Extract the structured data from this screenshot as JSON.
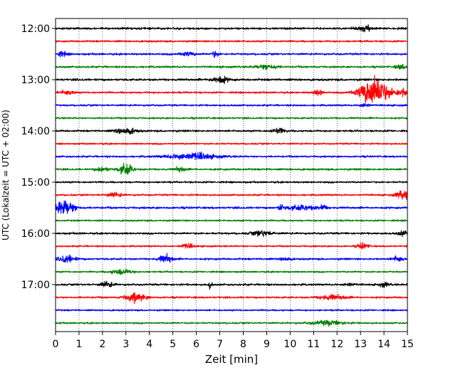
{
  "chart_data": {
    "type": "line",
    "title": "",
    "xlabel": "Zeit  [min]",
    "ylabel": "UTC (Lokalzeit = UTC + 02:00)",
    "xlim": [
      0,
      15
    ],
    "xticks": [
      0,
      1,
      2,
      3,
      4,
      5,
      6,
      7,
      8,
      9,
      10,
      11,
      12,
      13,
      14,
      15
    ],
    "xtick_labels": [
      "0",
      "1",
      "2",
      "3",
      "4",
      "5",
      "6",
      "7",
      "8",
      "9",
      "10",
      "11",
      "12",
      "13",
      "14",
      "15"
    ],
    "ylim_hours": [
      "11:45",
      "18:00"
    ],
    "yticks": [
      "12:00",
      "13:00",
      "14:00",
      "15:00",
      "16:00",
      "17:00"
    ],
    "grid": "vertical dotted",
    "trace_interval_minutes": 15,
    "trace_colors": [
      "#000000",
      "#ff0000",
      "#0000ff",
      "#008000"
    ],
    "traces": [
      {
        "start": "12:00",
        "color": "#000000",
        "amplitude": 0.16,
        "events": [
          {
            "t": 13.2,
            "amp": 0.35,
            "dur": 0.6
          }
        ]
      },
      {
        "start": "12:15",
        "color": "#ff0000",
        "amplitude": 0.14,
        "events": []
      },
      {
        "start": "12:30",
        "color": "#0000ff",
        "amplitude": 0.15,
        "events": [
          {
            "t": 0.3,
            "amp": 0.35,
            "dur": 0.3
          },
          {
            "t": 5.6,
            "amp": 0.3,
            "dur": 0.5
          },
          {
            "t": 6.8,
            "amp": 0.5,
            "dur": 0.2
          }
        ]
      },
      {
        "start": "12:45",
        "color": "#008000",
        "amplitude": 0.15,
        "events": [
          {
            "t": 9.0,
            "amp": 0.4,
            "dur": 0.6
          },
          {
            "t": 14.7,
            "amp": 0.35,
            "dur": 0.3
          }
        ]
      },
      {
        "start": "13:00",
        "color": "#000000",
        "amplitude": 0.17,
        "events": [
          {
            "t": 7.0,
            "amp": 0.55,
            "dur": 0.5
          }
        ]
      },
      {
        "start": "13:15",
        "color": "#ff0000",
        "amplitude": 0.14,
        "events": [
          {
            "t": 0.5,
            "amp": 0.35,
            "dur": 0.4
          },
          {
            "t": 11.2,
            "amp": 0.4,
            "dur": 0.3
          },
          {
            "t": 13.6,
            "amp": 2.3,
            "dur": 0.9
          },
          {
            "t": 14.8,
            "amp": 0.6,
            "dur": 0.3
          }
        ]
      },
      {
        "start": "13:30",
        "color": "#0000ff",
        "amplitude": 0.14,
        "events": [
          {
            "t": 13.2,
            "amp": 0.35,
            "dur": 0.3
          }
        ]
      },
      {
        "start": "13:45",
        "color": "#008000",
        "amplitude": 0.14,
        "events": []
      },
      {
        "start": "14:00",
        "color": "#000000",
        "amplitude": 0.15,
        "events": [
          {
            "t": 3.0,
            "amp": 0.5,
            "dur": 0.6
          },
          {
            "t": 9.5,
            "amp": 0.35,
            "dur": 0.4
          }
        ]
      },
      {
        "start": "14:15",
        "color": "#ff0000",
        "amplitude": 0.13,
        "events": []
      },
      {
        "start": "14:30",
        "color": "#0000ff",
        "amplitude": 0.14,
        "events": [
          {
            "t": 5.8,
            "amp": 0.55,
            "dur": 1.4
          }
        ]
      },
      {
        "start": "14:45",
        "color": "#008000",
        "amplitude": 0.15,
        "events": [
          {
            "t": 2.0,
            "amp": 0.35,
            "dur": 0.4
          },
          {
            "t": 3.0,
            "amp": 0.9,
            "dur": 0.4
          },
          {
            "t": 5.3,
            "amp": 0.35,
            "dur": 0.3
          }
        ]
      },
      {
        "start": "15:00",
        "color": "#000000",
        "amplitude": 0.14,
        "events": []
      },
      {
        "start": "15:15",
        "color": "#ff0000",
        "amplitude": 0.14,
        "events": [
          {
            "t": 2.5,
            "amp": 0.3,
            "dur": 0.5
          },
          {
            "t": 14.8,
            "amp": 0.65,
            "dur": 0.4
          }
        ]
      },
      {
        "start": "15:30",
        "color": "#0000ff",
        "amplitude": 0.16,
        "events": [
          {
            "t": 0.4,
            "amp": 1.2,
            "dur": 0.6
          },
          {
            "t": 9.6,
            "amp": 0.7,
            "dur": 0.1
          },
          {
            "t": 10.5,
            "amp": 0.35,
            "dur": 1.0
          },
          {
            "t": 11.4,
            "amp": 0.4,
            "dur": 0.2
          }
        ]
      },
      {
        "start": "15:45",
        "color": "#008000",
        "amplitude": 0.13,
        "events": []
      },
      {
        "start": "16:00",
        "color": "#000000",
        "amplitude": 0.15,
        "events": [
          {
            "t": 8.8,
            "amp": 0.4,
            "dur": 0.6
          },
          {
            "t": 14.8,
            "amp": 0.35,
            "dur": 0.3
          }
        ]
      },
      {
        "start": "16:15",
        "color": "#ff0000",
        "amplitude": 0.13,
        "events": [
          {
            "t": 5.6,
            "amp": 0.35,
            "dur": 0.4
          },
          {
            "t": 13.1,
            "amp": 0.5,
            "dur": 0.3
          }
        ]
      },
      {
        "start": "16:30",
        "color": "#0000ff",
        "amplitude": 0.15,
        "events": [
          {
            "t": 0.5,
            "amp": 0.55,
            "dur": 0.5
          },
          {
            "t": 4.7,
            "amp": 0.6,
            "dur": 0.4
          },
          {
            "t": 9.8,
            "amp": 0.3,
            "dur": 0.3
          },
          {
            "t": 14.6,
            "amp": 0.45,
            "dur": 0.3
          }
        ]
      },
      {
        "start": "16:45",
        "color": "#008000",
        "amplitude": 0.13,
        "events": [
          {
            "t": 2.8,
            "amp": 0.4,
            "dur": 0.6
          }
        ]
      },
      {
        "start": "17:00",
        "color": "#000000",
        "amplitude": 0.15,
        "events": [
          {
            "t": 2.2,
            "amp": 0.4,
            "dur": 0.4
          },
          {
            "t": 6.6,
            "amp": 0.6,
            "dur": 0.1
          },
          {
            "t": 12.5,
            "amp": 0.3,
            "dur": 0.3
          },
          {
            "t": 14.0,
            "amp": 0.3,
            "dur": 0.3
          }
        ]
      },
      {
        "start": "17:15",
        "color": "#ff0000",
        "amplitude": 0.14,
        "events": [
          {
            "t": 3.4,
            "amp": 0.7,
            "dur": 0.6
          },
          {
            "t": 11.8,
            "amp": 0.35,
            "dur": 0.8
          }
        ]
      },
      {
        "start": "17:30",
        "color": "#0000ff",
        "amplitude": 0.13,
        "events": []
      },
      {
        "start": "17:45",
        "color": "#008000",
        "amplitude": 0.13,
        "events": [
          {
            "t": 11.6,
            "amp": 0.35,
            "dur": 1.0
          }
        ]
      }
    ]
  }
}
